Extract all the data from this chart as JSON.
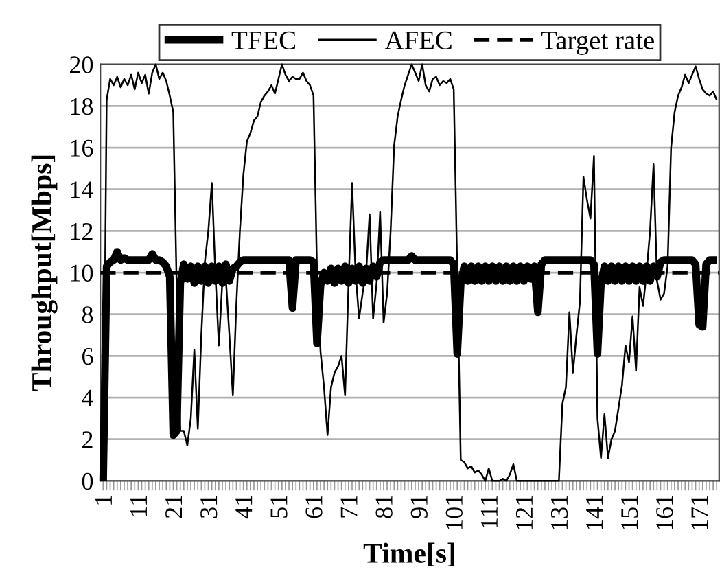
{
  "chart_data": {
    "type": "line",
    "xlabel": "Time[s]",
    "ylabel": "Throughput[Mbps]",
    "categories": [
      "1",
      null,
      null,
      null,
      null,
      null,
      null,
      null,
      null,
      null,
      "11",
      null,
      null,
      null,
      null,
      null,
      null,
      null,
      null,
      null,
      "21",
      null,
      null,
      null,
      null,
      null,
      null,
      null,
      null,
      null,
      "31",
      null,
      null,
      null,
      null,
      null,
      null,
      null,
      null,
      null,
      "41",
      null,
      null,
      null,
      null,
      null,
      null,
      null,
      null,
      null,
      "51",
      null,
      null,
      null,
      null,
      null,
      null,
      null,
      null,
      null,
      "61",
      null,
      null,
      null,
      null,
      null,
      null,
      null,
      null,
      null,
      "71",
      null,
      null,
      null,
      null,
      null,
      null,
      null,
      null,
      null,
      "81",
      null,
      null,
      null,
      null,
      null,
      null,
      null,
      null,
      null,
      "91",
      null,
      null,
      null,
      null,
      null,
      null,
      null,
      null,
      null,
      "101",
      null,
      null,
      null,
      null,
      null,
      null,
      null,
      null,
      null,
      "111",
      null,
      null,
      null,
      null,
      null,
      null,
      null,
      null,
      null,
      "121",
      null,
      null,
      null,
      null,
      null,
      null,
      null,
      null,
      null,
      "131",
      null,
      null,
      null,
      null,
      null,
      null,
      null,
      null,
      null,
      "141",
      null,
      null,
      null,
      null,
      null,
      null,
      null,
      null,
      null,
      "151",
      null,
      null,
      null,
      null,
      null,
      null,
      null,
      null,
      null,
      "161",
      null,
      null,
      null,
      null,
      null,
      null,
      null,
      null,
      null,
      "171",
      null,
      null,
      null,
      null,
      null
    ],
    "series": [
      {
        "name": "TFEC",
        "color": "#000000",
        "values": [
          0,
          10.3,
          10.5,
          10.6,
          11.0,
          10.6,
          10.7,
          10.6,
          10.6,
          10.6,
          10.6,
          10.6,
          10.6,
          10.6,
          10.9,
          10.6,
          10.6,
          10.5,
          10.3,
          9.8,
          2.2,
          2.4,
          9.5,
          10.4,
          9.7,
          10.3,
          9.5,
          10.3,
          9.6,
          10.3,
          9.5,
          10.3,
          9.6,
          10.3,
          9.5,
          10.4,
          9.6,
          10.2,
          10.3,
          10.5,
          10.6,
          10.6,
          10.6,
          10.6,
          10.6,
          10.6,
          10.6,
          10.6,
          10.6,
          10.6,
          10.6,
          10.6,
          10.6,
          10.6,
          8.3,
          10.6,
          10.6,
          10.6,
          10.6,
          10.6,
          10.5,
          6.6,
          9.4,
          10.0,
          9.6,
          10.2,
          9.5,
          10.2,
          9.6,
          10.3,
          9.5,
          10.2,
          9.6,
          10.3,
          9.5,
          10.2,
          9.6,
          10.3,
          9.8,
          10.5,
          10.6,
          10.6,
          10.6,
          10.6,
          10.6,
          10.6,
          10.6,
          10.6,
          10.8,
          10.6,
          10.6,
          10.6,
          10.6,
          10.6,
          10.6,
          10.6,
          10.6,
          10.6,
          10.6,
          10.6,
          10.4,
          6.1,
          9.5,
          10.3,
          9.6,
          10.3,
          9.6,
          10.3,
          9.6,
          10.3,
          9.6,
          10.3,
          9.6,
          10.3,
          9.6,
          10.3,
          9.6,
          10.3,
          9.6,
          10.3,
          9.6,
          10.3,
          9.7,
          10.3,
          8.1,
          10.4,
          10.6,
          10.6,
          10.6,
          10.6,
          10.6,
          10.6,
          10.6,
          10.6,
          10.6,
          10.6,
          10.6,
          10.6,
          10.6,
          10.6,
          10.4,
          6.1,
          9.5,
          10.3,
          9.6,
          10.3,
          9.6,
          10.3,
          9.6,
          10.3,
          9.6,
          10.3,
          9.6,
          10.3,
          9.6,
          10.3,
          9.6,
          10.3,
          9.8,
          10.5,
          10.6,
          10.6,
          10.6,
          10.6,
          10.6,
          10.6,
          10.6,
          10.6,
          10.6,
          10.4,
          7.5,
          7.4,
          10.4,
          10.6,
          10.6,
          10.6
        ]
      },
      {
        "name": "AFEC",
        "color": "#000000",
        "values": [
          0,
          18.3,
          19.3,
          19.0,
          19.4,
          18.9,
          19.3,
          19.0,
          19.5,
          18.8,
          19.6,
          19.1,
          19.5,
          18.6,
          19.6,
          20.0,
          19.3,
          19.6,
          19.2,
          18.5,
          17.7,
          9.0,
          2.4,
          2.4,
          1.7,
          3.0,
          6.3,
          2.5,
          7.0,
          10.5,
          12.0,
          14.3,
          10.0,
          6.5,
          9.6,
          9.7,
          7.0,
          4.1,
          8.5,
          12.0,
          14.7,
          16.3,
          16.7,
          17.3,
          17.5,
          18.2,
          18.5,
          18.7,
          19.0,
          18.6,
          19.3,
          20.0,
          19.5,
          19.2,
          19.4,
          19.3,
          19.3,
          19.6,
          19.2,
          19.0,
          18.5,
          10.0,
          6.2,
          4.5,
          2.2,
          4.5,
          5.2,
          5.5,
          6.0,
          4.1,
          9.5,
          14.3,
          10.0,
          7.8,
          9.0,
          10.0,
          12.8,
          7.8,
          9.5,
          12.9,
          7.6,
          9.0,
          12.0,
          16.1,
          17.5,
          18.3,
          19.0,
          19.5,
          20.0,
          19.6,
          19.2,
          20.0,
          19.0,
          18.7,
          19.3,
          19.4,
          19.0,
          19.2,
          19.1,
          19.3,
          18.8,
          10.0,
          1.0,
          0.9,
          0.6,
          0.7,
          0.4,
          0.5,
          0.3,
          0.0,
          0.6,
          0.0,
          0.0,
          0.0,
          0.1,
          0.0,
          0.3,
          0.8,
          0.0,
          0,
          0,
          0,
          0,
          0,
          0,
          0,
          0,
          0,
          0,
          0,
          0,
          3.7,
          4.5,
          8.1,
          5.2,
          7.0,
          8.6,
          14.6,
          13.5,
          12.6,
          15.6,
          3.0,
          1.1,
          3.2,
          1.1,
          2.0,
          2.4,
          3.5,
          4.6,
          6.5,
          5.7,
          7.9,
          5.3,
          9.3,
          8.4,
          10.0,
          12.0,
          15.2,
          9.6,
          8.7,
          9.0,
          10.3,
          16.0,
          17.7,
          18.5,
          18.9,
          19.5,
          19.1,
          19.5,
          19.9,
          19.3,
          18.8,
          18.6,
          18.5,
          18.7,
          18.3
        ]
      }
    ],
    "ref_lines": [
      {
        "axis": "y",
        "value": 10,
        "label": "Target rate",
        "color": "#000000",
        "line_style": "dashed"
      }
    ],
    "ylim": [
      0,
      20
    ],
    "yticks": [
      0,
      2,
      4,
      6,
      8,
      10,
      12,
      14,
      16,
      18,
      20
    ],
    "grid": "y",
    "legend": "top",
    "marker": "none",
    "line_style": "solid"
  }
}
